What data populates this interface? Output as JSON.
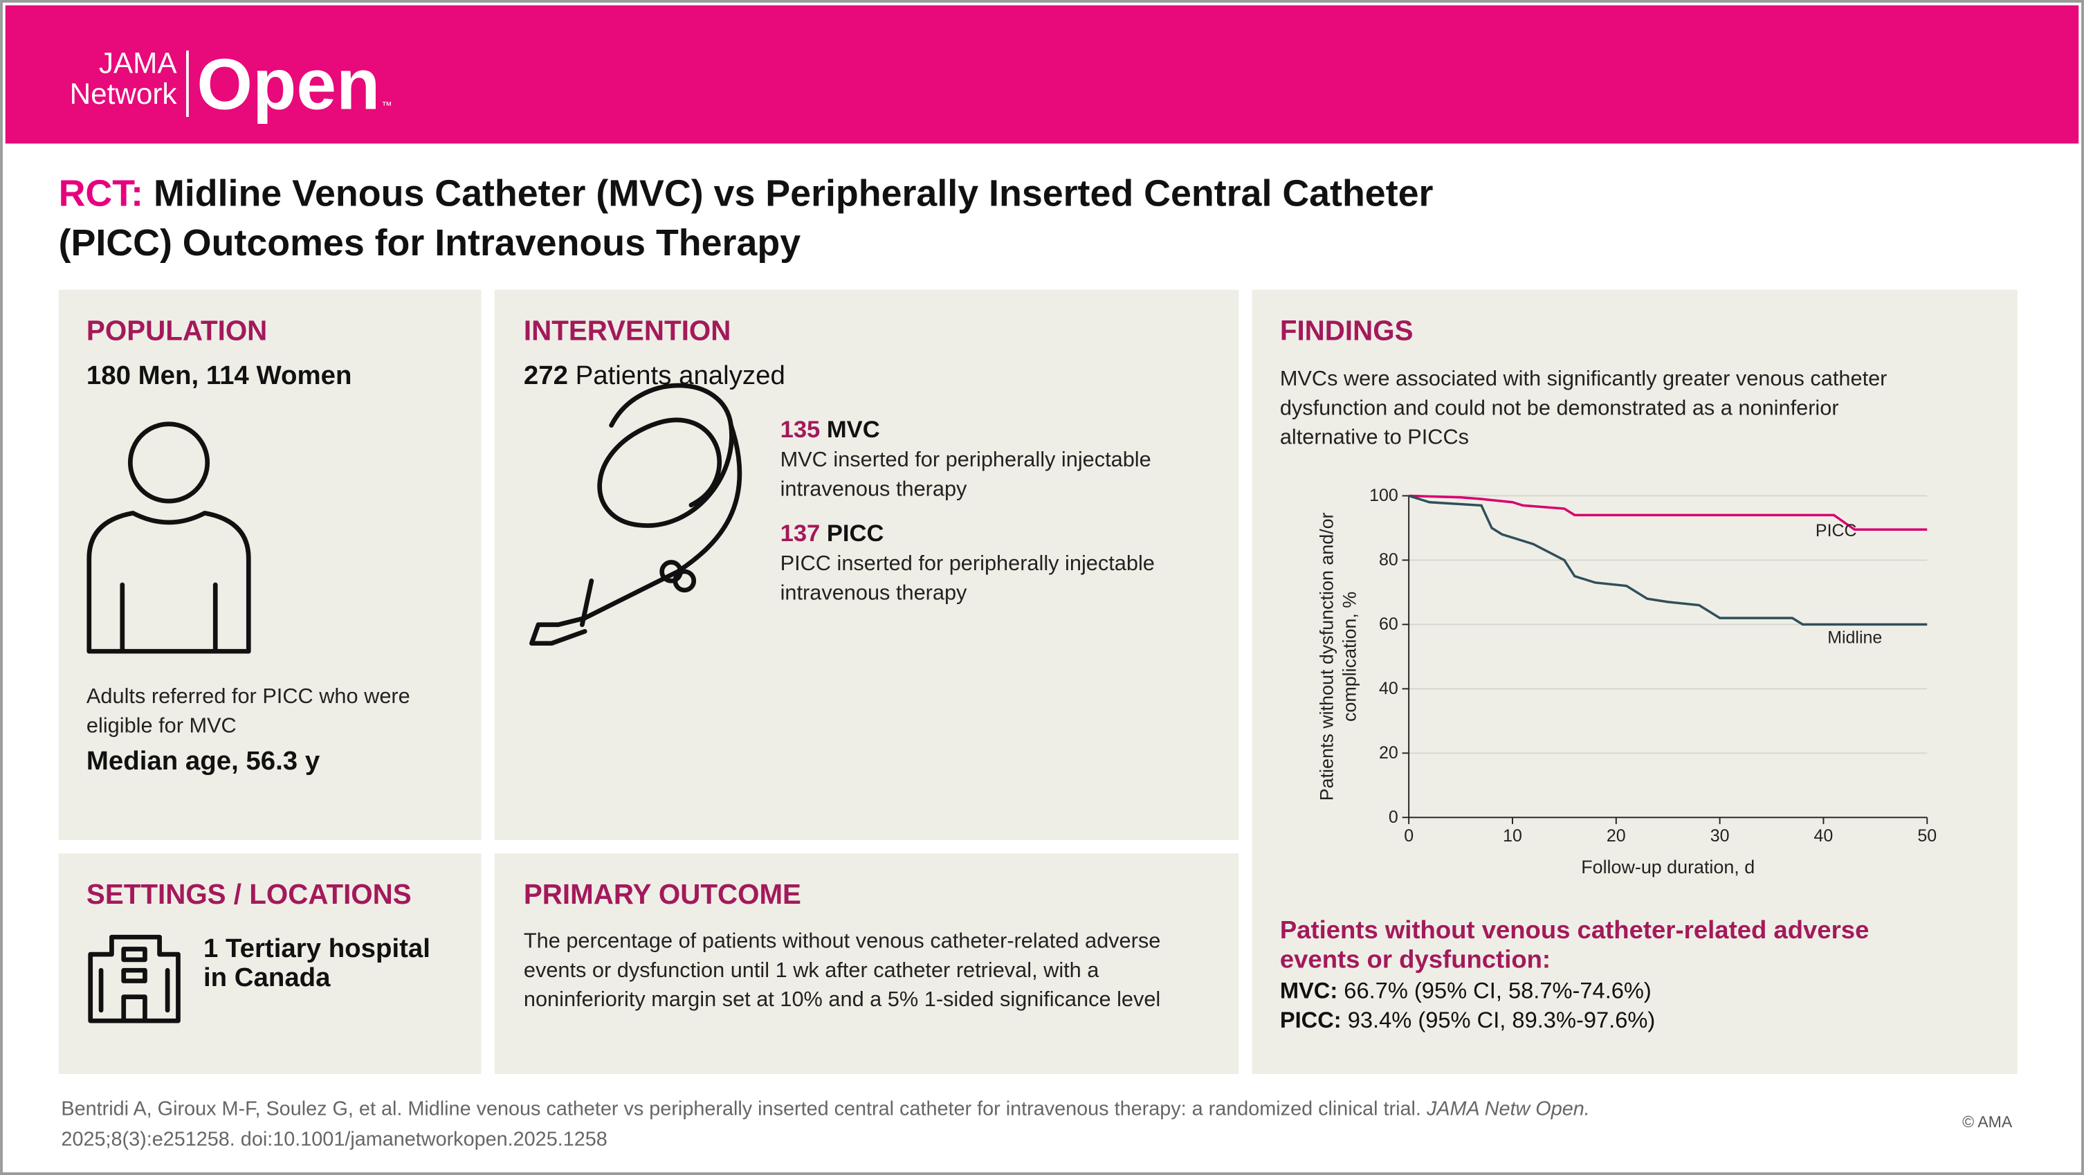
{
  "header": {
    "logo_line1": "JAMA",
    "logo_line2": "Network",
    "logo_open": "Open",
    "trademark": "™"
  },
  "title": {
    "label": "RCT:",
    "lines": [
      "Midline Venous Catheter (MVC) vs Peripherally Inserted Central Catheter",
      "(PICC) Outcomes for Intravenous Therapy"
    ]
  },
  "population": {
    "heading": "POPULATION",
    "subheading": "180 Men, 114 Women",
    "description_lines": [
      "Adults referred for PICC who were",
      "eligible for MVC"
    ],
    "median_age": "Median age, 56.3 y"
  },
  "intervention": {
    "heading": "INTERVENTION",
    "count": "272",
    "count_text": "Patients analyzed",
    "groups": [
      {
        "number": "135",
        "name": "MVC",
        "description_lines": [
          "MVC inserted for peripherally injectable",
          "intravenous therapy"
        ]
      },
      {
        "number": "137",
        "name": "PICC",
        "description_lines": [
          "PICC inserted for peripherally injectable",
          "intravenous therapy"
        ]
      }
    ]
  },
  "settings": {
    "heading": "SETTINGS / LOCATIONS",
    "lines": [
      "1 Tertiary hospital",
      "in Canada"
    ]
  },
  "primary_outcome": {
    "heading": "PRIMARY OUTCOME",
    "lines": [
      "The percentage of patients without venous catheter-related adverse",
      "events or dysfunction until 1 wk after catheter retrieval, with a",
      "noninferiority margin set at 10% and a 5% 1-sided significance level"
    ]
  },
  "findings": {
    "heading": "FINDINGS",
    "lines": [
      "MVCs were associated with significantly greater venous catheter",
      "dysfunction and could not be demonstrated as a noninferior",
      "alternative to PICCs"
    ],
    "result_heading_lines": [
      "Patients without venous catheter-related adverse",
      "events or dysfunction:"
    ],
    "results": [
      {
        "label": "MVC:",
        "text": "66.7% (95% CI, 58.7%-74.6%)"
      },
      {
        "label": "PICC:",
        "text": "93.4% (95% CI, 89.3%-97.6%)"
      }
    ]
  },
  "chart_data": {
    "type": "line",
    "xlabel": "Follow-up duration, d",
    "ylabel_lines": [
      "Patients without dysfunction and/or",
      "complication, %"
    ],
    "xlim": [
      0,
      50
    ],
    "xticks": [
      0,
      10,
      20,
      30,
      40,
      50
    ],
    "ylim": [
      0,
      100
    ],
    "yticks": [
      0,
      20,
      40,
      60,
      80,
      100
    ],
    "grid": true,
    "series": [
      {
        "name": "PICC",
        "color": "#d8006f",
        "x": [
          0,
          5,
          7,
          10,
          11,
          15,
          16,
          41,
          43,
          50
        ],
        "values": [
          100,
          99.5,
          99,
          98,
          97,
          96,
          94,
          94,
          89.5,
          89.5
        ]
      },
      {
        "name": "Midline",
        "color": "#2f4f5a",
        "x": [
          0,
          1,
          2,
          7,
          8,
          9,
          10,
          12,
          15,
          16,
          18,
          21,
          22,
          23,
          25,
          28,
          30,
          37,
          38,
          50
        ],
        "values": [
          100,
          99,
          98,
          97,
          90,
          88,
          87,
          85,
          80,
          75,
          73,
          72,
          70,
          68,
          67,
          66,
          62,
          62,
          60,
          60
        ]
      }
    ]
  },
  "citation": {
    "line1": "Bentridi A, Giroux M-F, Soulez G, et al. Midline venous catheter vs peripherally inserted central catheter for intravenous therapy: a randomized clinical trial.",
    "journal": "JAMA Netw Open.",
    "line2": "2025;8(3):e251258. doi:10.1001/jamanetworkopen.2025.1258"
  },
  "copyright": "© AMA"
}
